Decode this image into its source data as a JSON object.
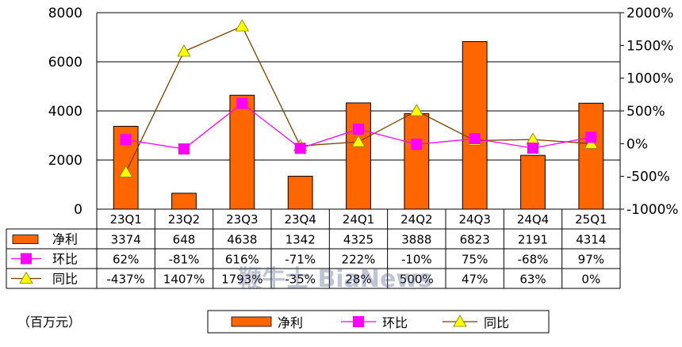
{
  "chart_data": {
    "type": "bar",
    "categories": [
      "23Q1",
      "23Q2",
      "23Q3",
      "23Q4",
      "24Q1",
      "24Q2",
      "24Q3",
      "24Q4",
      "25Q1"
    ],
    "series": [
      {
        "name": "净利",
        "kind": "bar",
        "axis": "left",
        "color": "#FF6600",
        "values": [
          3374,
          648,
          4638,
          1342,
          4325,
          3888,
          6823,
          2191,
          4314
        ],
        "labels": [
          "3374",
          "648",
          "4638",
          "1342",
          "4325",
          "3888",
          "6823",
          "2191",
          "4314"
        ]
      },
      {
        "name": "环比",
        "kind": "line",
        "axis": "right",
        "color": "#FF00FF",
        "marker": "square",
        "values": [
          62,
          -81,
          616,
          -71,
          222,
          -10,
          75,
          -68,
          97
        ],
        "labels": [
          "62%",
          "-81%",
          "616%",
          "-71%",
          "222%",
          "-10%",
          "75%",
          "-68%",
          "97%"
        ]
      },
      {
        "name": "同比",
        "kind": "line",
        "axis": "right",
        "color": "#7F3F00",
        "marker": "triangle",
        "marker_color": "#FFFF00",
        "values": [
          -437,
          1407,
          1793,
          -35,
          28,
          500,
          47,
          63,
          0
        ],
        "labels": [
          "-437%",
          "1407%",
          "1793%",
          "-35%",
          "28%",
          "500%",
          "47%",
          "63%",
          "0%"
        ]
      }
    ],
    "y_left": {
      "range": [
        0,
        8000
      ],
      "ticks": [
        "0",
        "2000",
        "4000",
        "6000",
        "8000"
      ]
    },
    "y_right": {
      "range": [
        -1000,
        2000
      ],
      "ticks": [
        "-1000%",
        "-500%",
        "0%",
        "500%",
        "1000%",
        "1500%",
        "2000%"
      ]
    },
    "grid": true,
    "unit_label": "（百万元）",
    "legend": {
      "position": "bottom",
      "items": [
        "净利",
        "环比",
        "同比"
      ]
    },
    "data_table": true
  },
  "watermark": "鞭牛士 BiaNews"
}
